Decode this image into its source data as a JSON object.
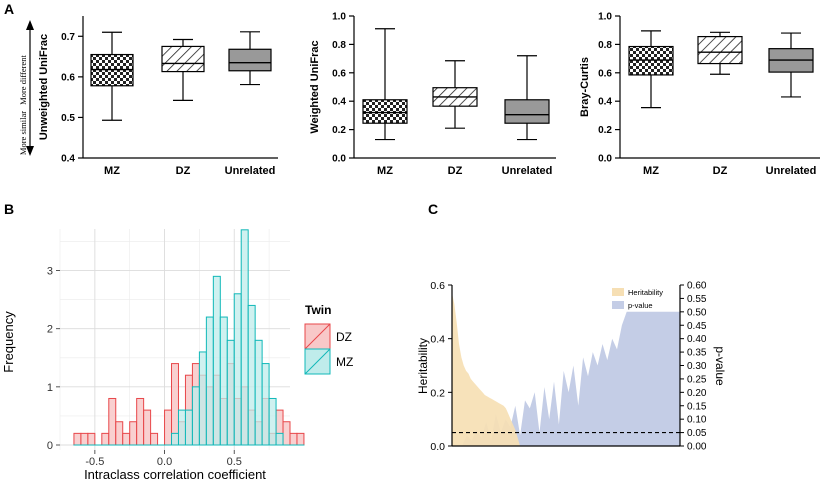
{
  "panels": {
    "a": "A",
    "b": "B",
    "c": "C"
  },
  "annotations": {
    "more_different": "More different",
    "more_similar": "More similar"
  },
  "colors": {
    "dz_fill": "#f8c8c8",
    "dz_line": "#e8474a",
    "mz_fill": "#bfeceb",
    "mz_line": "#10b8b8",
    "heritability": "#f6dfb4",
    "pvalue": "#c4cde6",
    "box_unrelated": "#999999",
    "hist_bg": "#ffffff"
  },
  "chart_data": [
    {
      "id": "a1",
      "type": "box",
      "title": "",
      "ylabel": "Unweighted UniFrac",
      "ylim": [
        0.4,
        0.75
      ],
      "yticks": [
        "0.4",
        "0.5",
        "0.6",
        "0.7"
      ],
      "categories": [
        "MZ",
        "DZ",
        "Unrelated"
      ],
      "boxes": [
        {
          "min": 0.493,
          "q1": 0.578,
          "median": 0.618,
          "q3": 0.655,
          "max": 0.71,
          "pattern": "checker"
        },
        {
          "min": 0.542,
          "q1": 0.613,
          "median": 0.633,
          "q3": 0.675,
          "max": 0.692,
          "pattern": "hatch"
        },
        {
          "min": 0.581,
          "q1": 0.615,
          "median": 0.635,
          "q3": 0.668,
          "max": 0.711,
          "pattern": "gray"
        }
      ]
    },
    {
      "id": "a2",
      "type": "box",
      "title": "",
      "ylabel": "Weighted UniFrac",
      "ylim": [
        0.0,
        1.0
      ],
      "yticks": [
        "0.0",
        "0.2",
        "0.4",
        "0.6",
        "0.8",
        "1.0"
      ],
      "categories": [
        "MZ",
        "DZ",
        "Unrelated"
      ],
      "boxes": [
        {
          "min": 0.13,
          "q1": 0.245,
          "median": 0.32,
          "q3": 0.41,
          "max": 0.91,
          "pattern": "checker"
        },
        {
          "min": 0.21,
          "q1": 0.365,
          "median": 0.43,
          "q3": 0.495,
          "max": 0.685,
          "pattern": "hatch"
        },
        {
          "min": 0.13,
          "q1": 0.245,
          "median": 0.305,
          "q3": 0.41,
          "max": 0.72,
          "pattern": "gray"
        }
      ]
    },
    {
      "id": "a3",
      "type": "box",
      "title": "",
      "ylabel": "Bray-Curtis",
      "ylim": [
        0.0,
        1.0
      ],
      "yticks": [
        "0.0",
        "0.2",
        "0.4",
        "0.6",
        "0.8",
        "1.0"
      ],
      "categories": [
        "MZ",
        "DZ",
        "Unrelated"
      ],
      "boxes": [
        {
          "min": 0.355,
          "q1": 0.585,
          "median": 0.69,
          "q3": 0.785,
          "max": 0.895,
          "pattern": "checker"
        },
        {
          "min": 0.59,
          "q1": 0.665,
          "median": 0.745,
          "q3": 0.855,
          "max": 0.885,
          "pattern": "hatch"
        },
        {
          "min": 0.43,
          "q1": 0.605,
          "median": 0.69,
          "q3": 0.77,
          "max": 0.88,
          "pattern": "gray"
        }
      ]
    },
    {
      "id": "b",
      "type": "histogram",
      "title": "",
      "xlabel": "Intraclass correlation coefficient",
      "ylabel": "Frequency",
      "xlim": [
        -0.75,
        0.9
      ],
      "ylim": [
        0,
        3.8
      ],
      "xticks": [
        "-0.5",
        "0.0",
        "0.5"
      ],
      "yticks": [
        "0",
        "1",
        "2",
        "3"
      ],
      "bin_start": -0.65,
      "bin_width": 0.05,
      "legend": {
        "title": "Twin",
        "position": "right"
      },
      "series": [
        {
          "name": "DZ",
          "counts": [
            0.2,
            0.2,
            0.2,
            0,
            0.2,
            0.8,
            0.4,
            0.2,
            0.4,
            0.8,
            0.6,
            0.2,
            0,
            0.6,
            1.4,
            0.4,
            1.2,
            1.4,
            1.2,
            1.0,
            1.2,
            0.8,
            1.4,
            0.8,
            1.0,
            0.6,
            0.4,
            0.8,
            0.2,
            0.6,
            0.4,
            0.2,
            0.2
          ]
        },
        {
          "name": "MZ",
          "counts": [
            0,
            0,
            0,
            0,
            0,
            0,
            0,
            0,
            0,
            0,
            0,
            0,
            0,
            0,
            0.2,
            0.6,
            0.6,
            1.0,
            1.6,
            2.2,
            2.9,
            2.2,
            1.8,
            2.6,
            3.7,
            2.4,
            1.8,
            1.4,
            0.8,
            0.2,
            0,
            0,
            0
          ]
        }
      ]
    },
    {
      "id": "c",
      "type": "area",
      "ylabel_left": "Heritability",
      "ylabel_right": "p-value",
      "ylim_left": [
        0,
        0.6
      ],
      "ylim_right": [
        0,
        0.6
      ],
      "yticks_left": [
        "0.0",
        "0.2",
        "0.4",
        "0.6"
      ],
      "yticks_right": [
        "0.00",
        "0.05",
        "0.10",
        "0.15",
        "0.20",
        "0.25",
        "0.30",
        "0.35",
        "0.40",
        "0.45",
        "0.50",
        "0.55",
        "0.60"
      ],
      "significance_line": 0.05,
      "legend": {
        "position": "top-right"
      },
      "series": [
        {
          "name": "Heritability",
          "values": [
            0.57,
            0.53,
            0.46,
            0.38,
            0.33,
            0.3,
            0.28,
            0.27,
            0.25,
            0.24,
            0.23,
            0.22,
            0.21,
            0.2,
            0.19,
            0.185,
            0.18,
            0.175,
            0.17,
            0.165,
            0.16,
            0.155,
            0.15,
            0.14,
            0.12,
            0.1,
            0.08,
            0.06,
            0.03,
            0.0
          ]
        },
        {
          "name": "p-value",
          "values": [
            0.0,
            0.04,
            0.02,
            0.06,
            0.03,
            0.09,
            0.02,
            0.12,
            0.05,
            0.1,
            0.07,
            0.15,
            0.04,
            0.17,
            0.14,
            0.2,
            0.05,
            0.22,
            0.1,
            0.24,
            0.08,
            0.28,
            0.2,
            0.3,
            0.15,
            0.33,
            0.26,
            0.35,
            0.3,
            0.38,
            0.32,
            0.4,
            0.36,
            0.45,
            0.5,
            0.5,
            0.5,
            0.5,
            0.5,
            0.5,
            0.5,
            0.5,
            0.5,
            0.5,
            0.5,
            0.5
          ]
        }
      ]
    }
  ]
}
